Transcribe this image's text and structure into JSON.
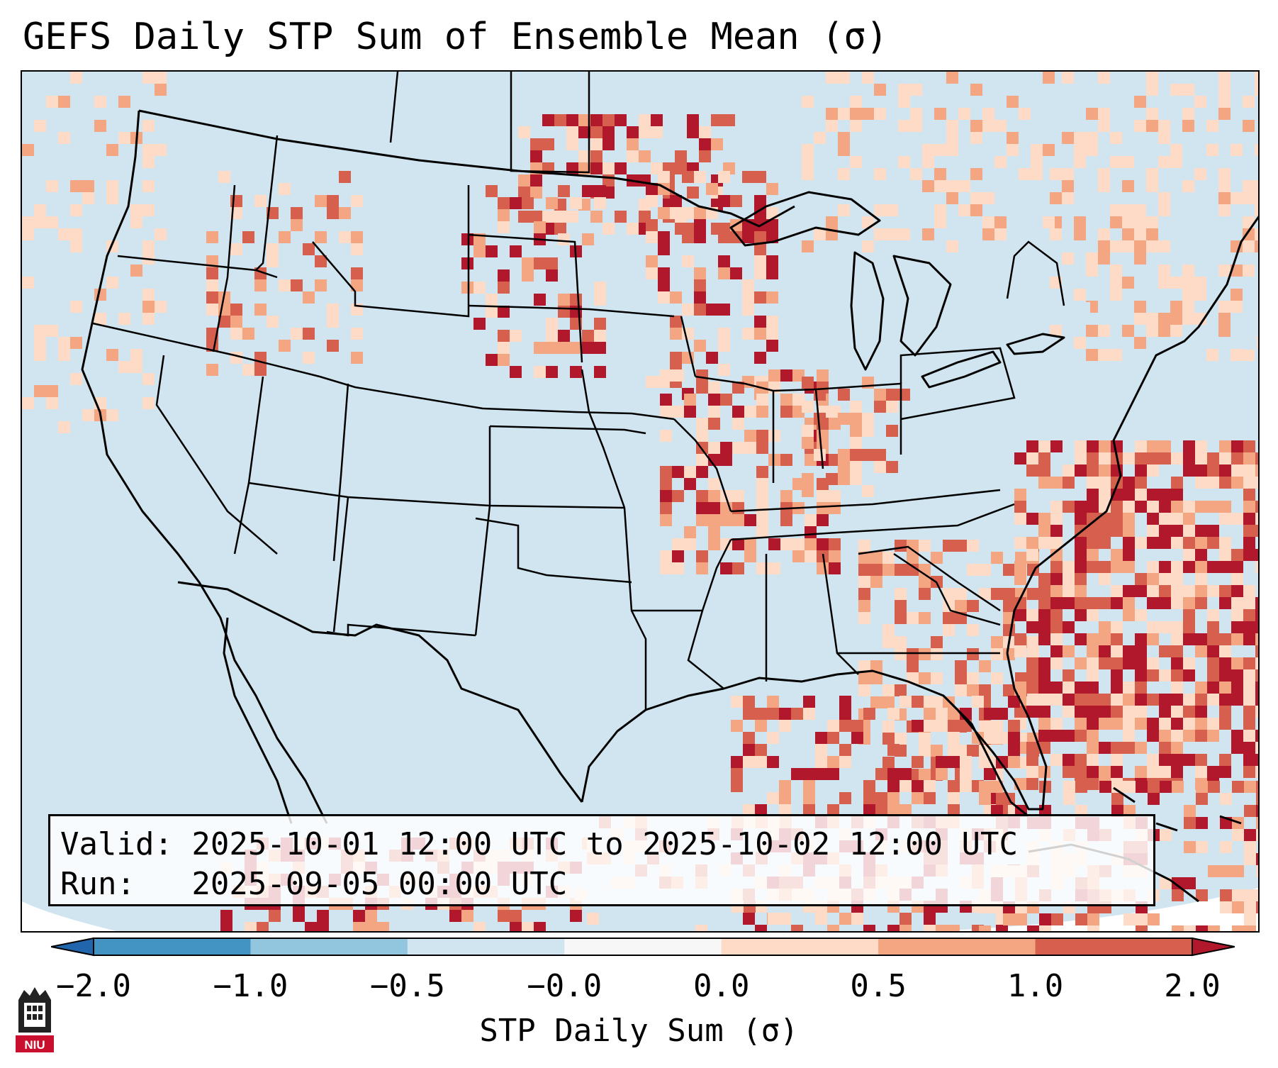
{
  "title": "GEFS Daily STP Sum of Ensemble Mean (σ)",
  "info": {
    "valid_line": "Valid: 2025-10-01 12:00 UTC to 2025-10-02 12:00 UTC",
    "run_line": "Run:   2025-09-05 00:00 UTC"
  },
  "colorbar": {
    "label": "STP Daily Sum (σ)",
    "ticks": [
      "−2.0",
      "−1.0",
      "−0.5",
      "−0.0",
      "0.0",
      "0.5",
      "1.0",
      "2.0"
    ],
    "bin_colors": [
      "#2166ac",
      "#4393c3",
      "#92c5de",
      "#d1e5f0",
      "#f7f7f7",
      "#fddbc7",
      "#f4a582",
      "#d6604d",
      "#b2182b"
    ]
  },
  "map": {
    "background_color": "#d1e5f0",
    "region": "Continental United States, Gulf of Mexico, western Atlantic",
    "anomaly_regions": [
      {
        "area": "Northern Plains / Dakotas",
        "level": "high"
      },
      {
        "area": "Upper Mississippi Valley / Minnesota",
        "level": "high"
      },
      {
        "area": "Illinois / Indiana",
        "level": "moderate"
      },
      {
        "area": "Southeast US",
        "level": "moderate"
      },
      {
        "area": "Western Atlantic",
        "level": "moderate-high"
      },
      {
        "area": "Gulf of Mexico",
        "level": "moderate-high"
      },
      {
        "area": "Pacific Northwest / Idaho",
        "level": "low-moderate"
      }
    ]
  },
  "logo": {
    "text": "NIU"
  }
}
